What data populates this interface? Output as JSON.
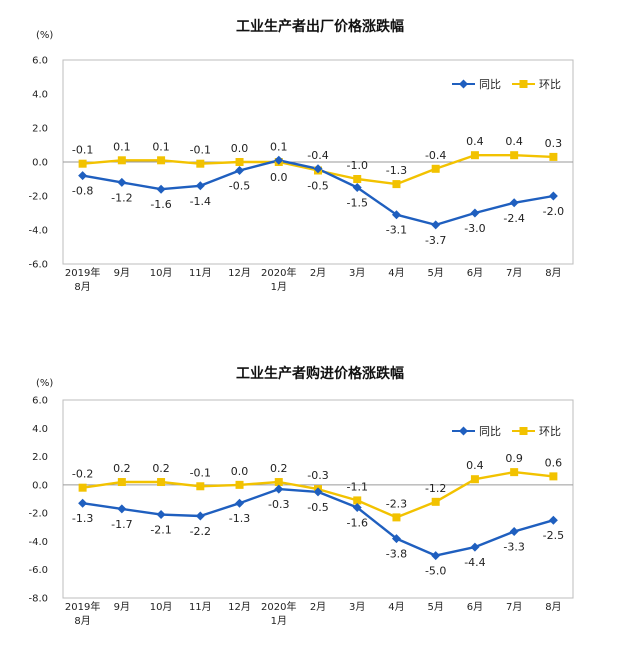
{
  "chart_data": [
    {
      "type": "line",
      "title": "工业生产者出厂价格涨跌幅",
      "unit": "(%)",
      "ylim": [
        -6.0,
        6.0
      ],
      "yticks": [
        "6.0",
        "4.0",
        "2.0",
        "0.0",
        "-2.0",
        "-4.0",
        "-6.0"
      ],
      "categories": [
        {
          "l1": "2019年",
          "l2": "8月"
        },
        {
          "l1": "9月",
          "l2": ""
        },
        {
          "l1": "10月",
          "l2": ""
        },
        {
          "l1": "11月",
          "l2": ""
        },
        {
          "l1": "12月",
          "l2": ""
        },
        {
          "l1": "2020年",
          "l2": "1月"
        },
        {
          "l1": "2月",
          "l2": ""
        },
        {
          "l1": "3月",
          "l2": ""
        },
        {
          "l1": "4月",
          "l2": ""
        },
        {
          "l1": "5月",
          "l2": ""
        },
        {
          "l1": "6月",
          "l2": ""
        },
        {
          "l1": "7月",
          "l2": ""
        },
        {
          "l1": "8月",
          "l2": ""
        }
      ],
      "series": [
        {
          "name": "同比",
          "color": "#1f5fbf",
          "marker": "diamond",
          "values": [
            -0.8,
            -1.2,
            -1.6,
            -1.4,
            -0.5,
            0.1,
            -0.4,
            -1.5,
            -3.1,
            -3.7,
            -3.0,
            -2.4,
            -2.0
          ],
          "labels": [
            "-0.8",
            "-1.2",
            "-1.6",
            "-1.4",
            "-0.5",
            "0.1",
            "-0.4",
            "-1.5",
            "-3.1",
            "-3.7",
            "-3.0",
            "-2.4",
            "-2.0"
          ],
          "label_pos": [
            "below",
            "below",
            "below",
            "below",
            "below",
            "above",
            "above",
            "below",
            "below",
            "below",
            "below",
            "below",
            "below"
          ]
        },
        {
          "name": "环比",
          "color": "#f2c200",
          "marker": "square",
          "values": [
            -0.1,
            0.1,
            0.1,
            -0.1,
            0.0,
            0.0,
            -0.5,
            -1.0,
            -1.3,
            -0.4,
            0.4,
            0.4,
            0.3
          ],
          "labels": [
            "-0.1",
            "0.1",
            "0.1",
            "-0.1",
            "0.0",
            "0.0",
            "-0.5",
            "-1.0",
            "-1.3",
            "-0.4",
            "0.4",
            "0.4",
            "0.3"
          ],
          "label_pos": [
            "above",
            "above",
            "above",
            "above",
            "above",
            "below",
            "below",
            "above",
            "above",
            "above",
            "above",
            "above",
            "above"
          ]
        }
      ]
    },
    {
      "type": "line",
      "title": "工业生产者购进价格涨跌幅",
      "unit": "(%)",
      "ylim": [
        -8.0,
        6.0
      ],
      "yticks": [
        "6.0",
        "4.0",
        "2.0",
        "0.0",
        "-2.0",
        "-4.0",
        "-6.0",
        "-8.0"
      ],
      "categories": [
        {
          "l1": "2019年",
          "l2": "8月"
        },
        {
          "l1": "9月",
          "l2": ""
        },
        {
          "l1": "10月",
          "l2": ""
        },
        {
          "l1": "11月",
          "l2": ""
        },
        {
          "l1": "12月",
          "l2": ""
        },
        {
          "l1": "2020年",
          "l2": "1月"
        },
        {
          "l1": "2月",
          "l2": ""
        },
        {
          "l1": "3月",
          "l2": ""
        },
        {
          "l1": "4月",
          "l2": ""
        },
        {
          "l1": "5月",
          "l2": ""
        },
        {
          "l1": "6月",
          "l2": ""
        },
        {
          "l1": "7月",
          "l2": ""
        },
        {
          "l1": "8月",
          "l2": ""
        }
      ],
      "series": [
        {
          "name": "同比",
          "color": "#1f5fbf",
          "marker": "diamond",
          "values": [
            -1.3,
            -1.7,
            -2.1,
            -2.2,
            -1.3,
            -0.3,
            -0.5,
            -1.6,
            -3.8,
            -5.0,
            -4.4,
            -3.3,
            -2.5
          ],
          "labels": [
            "-1.3",
            "-1.7",
            "-2.1",
            "-2.2",
            "-1.3",
            "-0.3",
            "-0.5",
            "-1.6",
            "-3.8",
            "-5.0",
            "-4.4",
            "-3.3",
            "-2.5"
          ],
          "label_pos": [
            "below",
            "below",
            "below",
            "below",
            "below",
            "below",
            "below",
            "below",
            "below",
            "below",
            "below",
            "below",
            "below"
          ]
        },
        {
          "name": "环比",
          "color": "#f2c200",
          "marker": "square",
          "values": [
            -0.2,
            0.2,
            0.2,
            -0.1,
            0.0,
            0.2,
            -0.3,
            -1.1,
            -2.3,
            -1.2,
            0.4,
            0.9,
            0.6
          ],
          "labels": [
            "-0.2",
            "0.2",
            "0.2",
            "-0.1",
            "0.0",
            "0.2",
            "-0.3",
            "-1.1",
            "-2.3",
            "-1.2",
            "0.4",
            "0.9",
            "0.6"
          ],
          "label_pos": [
            "above",
            "above",
            "above",
            "above",
            "above",
            "above",
            "above",
            "above",
            "above",
            "above",
            "above",
            "above",
            "above"
          ]
        }
      ]
    }
  ]
}
